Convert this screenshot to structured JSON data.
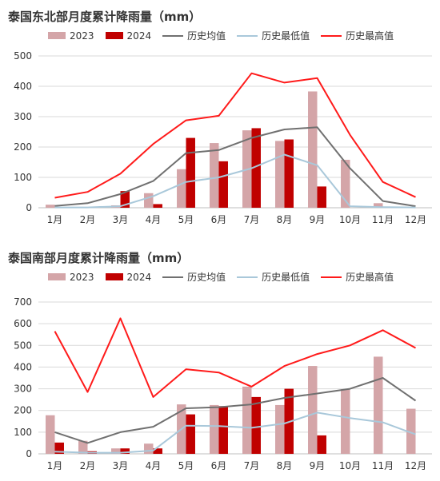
{
  "chart_data": [
    {
      "type": "bar",
      "title": "泰国东北部月度累计降雨量（mm）",
      "categories": [
        "1月",
        "2月",
        "3月",
        "4月",
        "5月",
        "6月",
        "7月",
        "8月",
        "9月",
        "10月",
        "11月",
        "12月"
      ],
      "ylim": [
        0,
        500
      ],
      "yticks": [
        0,
        100,
        200,
        300,
        400,
        500
      ],
      "grid": true,
      "legend_position": "top",
      "series": [
        {
          "name": "2023",
          "kind": "bar",
          "color": "#d4a5a8",
          "values": [
            10,
            2,
            8,
            48,
            127,
            213,
            255,
            220,
            383,
            158,
            15,
            2
          ]
        },
        {
          "name": "2024",
          "kind": "bar",
          "color": "#c00000",
          "values": [
            2,
            0,
            55,
            12,
            230,
            153,
            262,
            225,
            70,
            null,
            null,
            null
          ]
        },
        {
          "name": "历史均值",
          "kind": "line",
          "color": "#707070",
          "values": [
            6,
            15,
            45,
            88,
            180,
            190,
            230,
            258,
            265,
            130,
            22,
            5
          ]
        },
        {
          "name": "历史最低值",
          "kind": "line",
          "color": "#a9c8da",
          "values": [
            1,
            1,
            5,
            38,
            85,
            100,
            130,
            175,
            140,
            5,
            2,
            1
          ]
        },
        {
          "name": "历史最高值",
          "kind": "line",
          "color": "#ff1a1a",
          "values": [
            33,
            52,
            112,
            210,
            288,
            303,
            443,
            412,
            427,
            240,
            85,
            35
          ]
        }
      ]
    },
    {
      "type": "bar",
      "title": "泰国南部月度累计降雨量（mm）",
      "categories": [
        "1月",
        "2月",
        "3月",
        "4月",
        "5月",
        "6月",
        "7月",
        "8月",
        "9月",
        "10月",
        "11月",
        "12月"
      ],
      "ylim": [
        0,
        700
      ],
      "yticks": [
        0,
        100,
        200,
        300,
        400,
        500,
        600,
        700
      ],
      "grid": true,
      "legend_position": "top",
      "series": [
        {
          "name": "2023",
          "kind": "bar",
          "color": "#d4a5a8",
          "values": [
            178,
            60,
            25,
            47,
            228,
            225,
            310,
            225,
            405,
            298,
            448,
            208
          ]
        },
        {
          "name": "2024",
          "kind": "bar",
          "color": "#c00000",
          "values": [
            52,
            12,
            25,
            25,
            182,
            220,
            262,
            300,
            85,
            null,
            null,
            null
          ]
        },
        {
          "name": "历史均值",
          "kind": "line",
          "color": "#707070",
          "values": [
            100,
            50,
            100,
            125,
            210,
            215,
            228,
            258,
            278,
            300,
            350,
            245
          ]
        },
        {
          "name": "历史最低值",
          "kind": "line",
          "color": "#a9c8da",
          "values": [
            10,
            5,
            5,
            15,
            130,
            128,
            120,
            140,
            190,
            165,
            145,
            90
          ]
        },
        {
          "name": "历史最高值",
          "kind": "line",
          "color": "#ff1a1a",
          "values": [
            565,
            285,
            625,
            262,
            390,
            375,
            310,
            405,
            460,
            500,
            570,
            488
          ]
        }
      ]
    }
  ]
}
